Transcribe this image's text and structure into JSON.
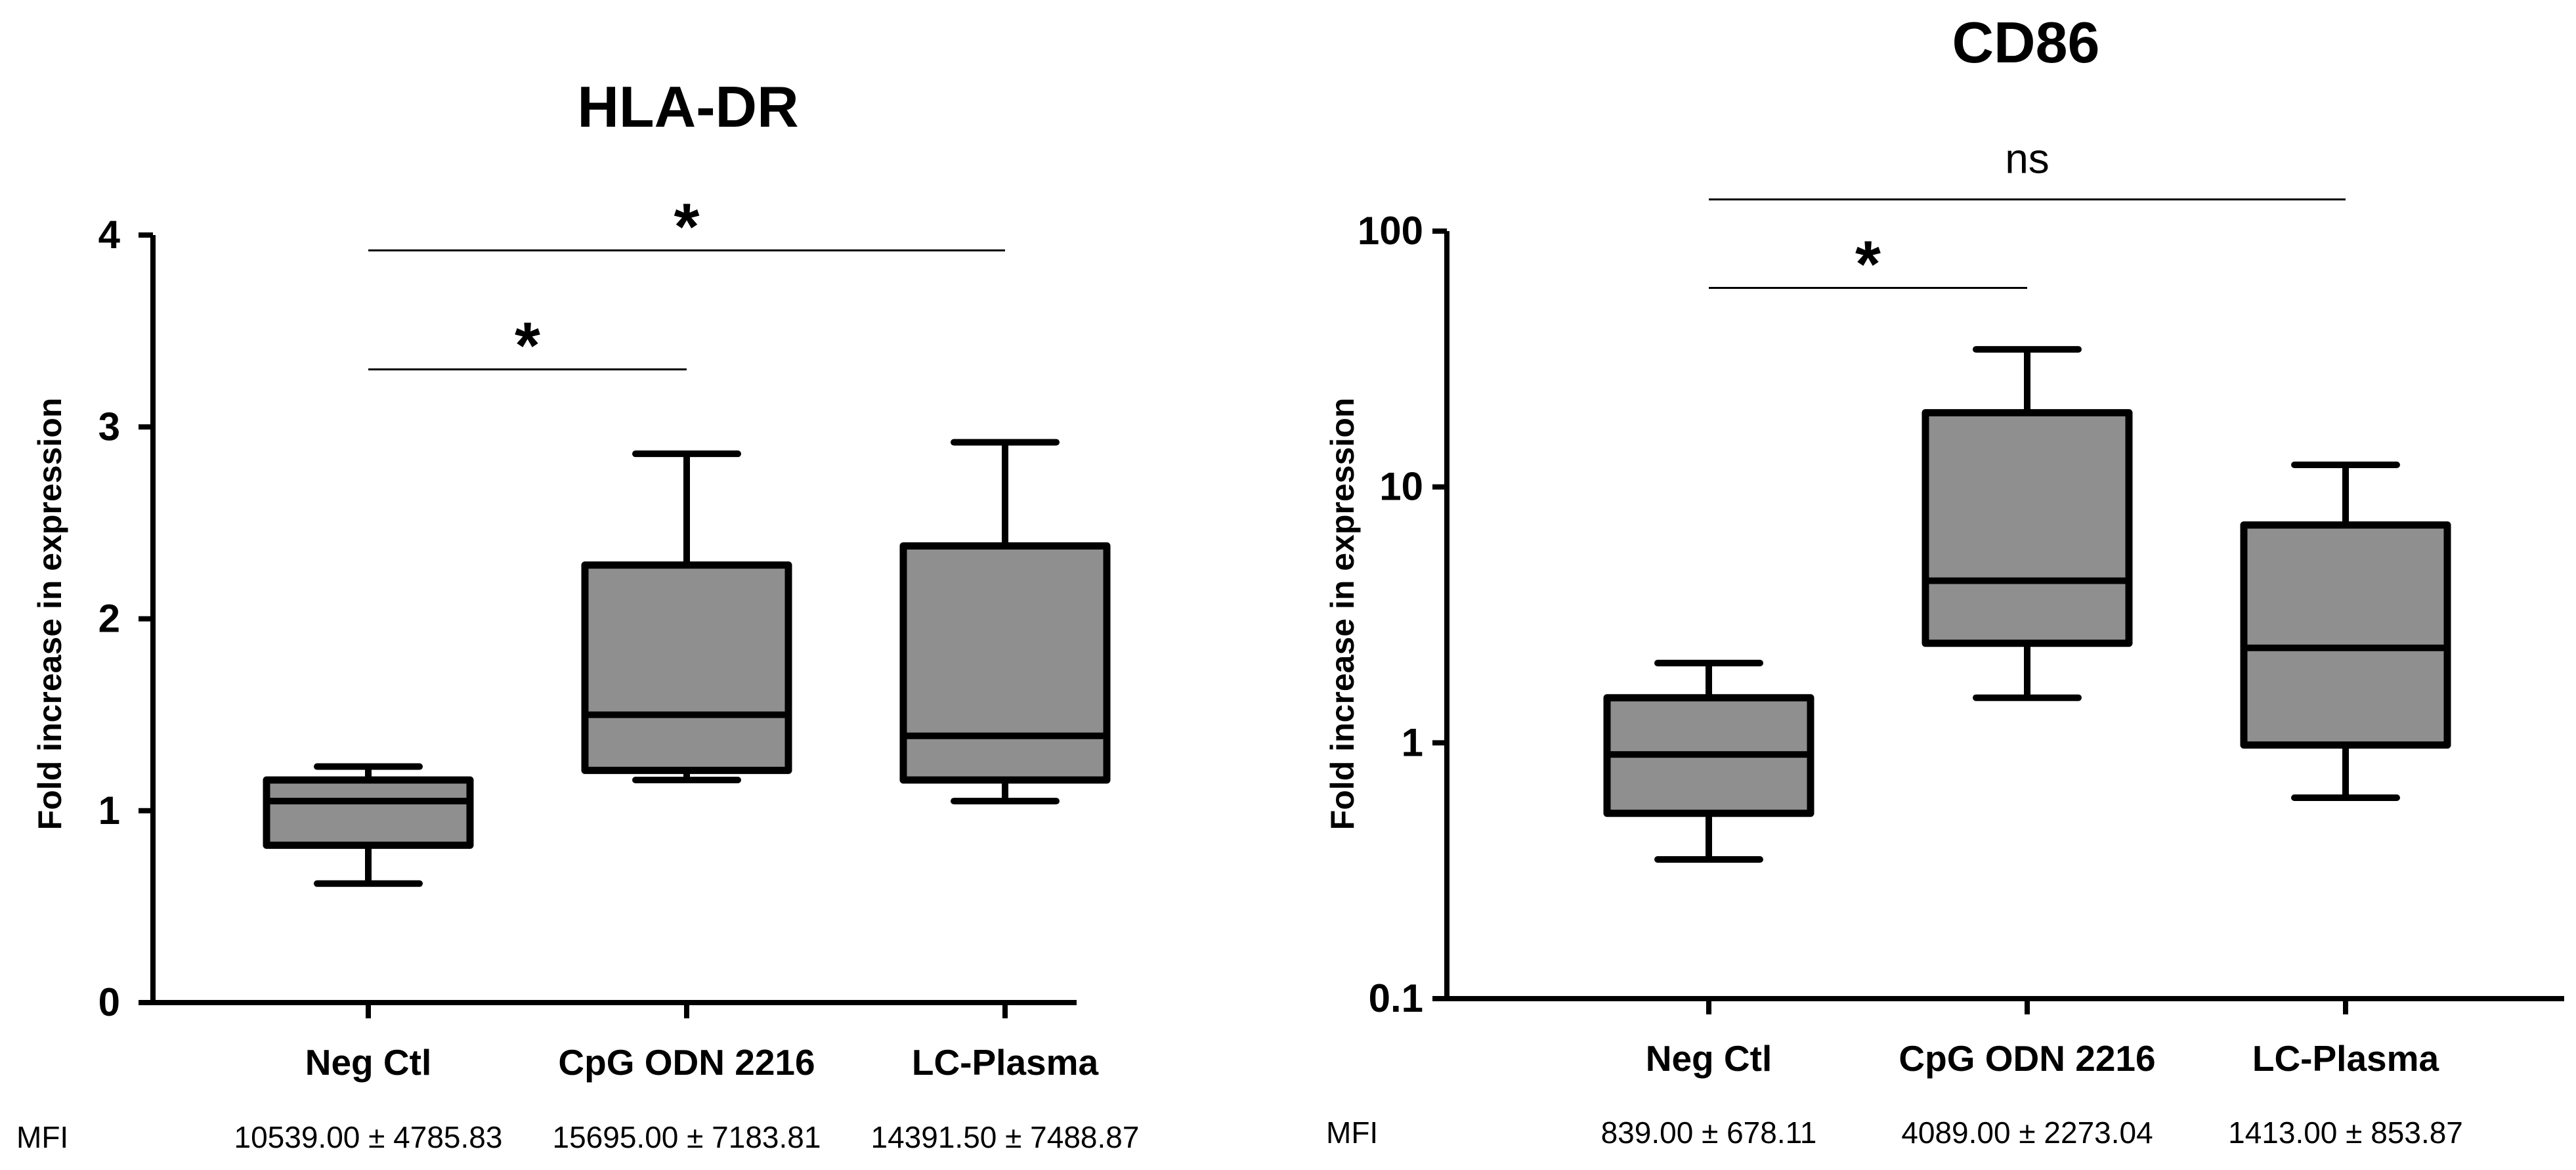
{
  "chart_data": [
    {
      "type": "box",
      "title": "HLA-DR",
      "xlabel": "",
      "ylabel": "Fold increase in expression",
      "yscale": "linear",
      "ylim": [
        0,
        4
      ],
      "yticks": [
        0,
        1,
        2,
        3,
        4
      ],
      "ytick_labels": [
        "0",
        "1",
        "2",
        "3",
        "4"
      ],
      "categories": [
        "Neg Ctl",
        "CpG ODN 2216",
        "LC-Plasma"
      ],
      "boxes": [
        {
          "category": "Neg Ctl",
          "min": 0.62,
          "q1": 0.82,
          "median": 1.05,
          "q3": 1.16,
          "max": 1.23
        },
        {
          "category": "CpG ODN 2216",
          "min": 1.16,
          "q1": 1.21,
          "median": 1.5,
          "q3": 2.28,
          "max": 2.86
        },
        {
          "category": "LC-Plasma",
          "min": 1.05,
          "q1": 1.16,
          "median": 1.39,
          "q3": 2.38,
          "max": 2.92
        }
      ],
      "significance": [
        {
          "from": 0,
          "to": 1,
          "label": "*",
          "y": 3.3
        },
        {
          "from": 0,
          "to": 2,
          "label": "*",
          "y": 3.92
        }
      ],
      "mfi_label": "MFI",
      "mfi_values": [
        "10539.00 ± 4785.83",
        "15695.00 ± 7183.81",
        "14391.50 ± 7488.87"
      ]
    },
    {
      "type": "box",
      "title": "CD86",
      "xlabel": "",
      "ylabel": "Fold increase in expression",
      "yscale": "log",
      "ylim": [
        0.1,
        100
      ],
      "yticks": [
        0.1,
        1,
        10,
        100
      ],
      "ytick_labels": [
        "0.1",
        "1",
        "10",
        "100"
      ],
      "categories": [
        "Neg Ctl",
        "CpG ODN 2216",
        "LC-Plasma"
      ],
      "boxes": [
        {
          "category": "Neg Ctl",
          "min": 0.35,
          "q1": 0.53,
          "median": 0.9,
          "q3": 1.5,
          "max": 2.05
        },
        {
          "category": "CpG ODN 2216",
          "min": 1.5,
          "q1": 2.45,
          "median": 4.3,
          "q3": 19.5,
          "max": 34.5
        },
        {
          "category": "LC-Plasma",
          "min": 0.61,
          "q1": 0.98,
          "median": 2.35,
          "q3": 7.1,
          "max": 12.2
        }
      ],
      "significance": [
        {
          "from": 0,
          "to": 1,
          "label": "*",
          "y": 60
        },
        {
          "from": 0,
          "to": 2,
          "label": "ns",
          "y": 133
        }
      ],
      "mfi_label": "MFI",
      "mfi_values": [
        "839.00 ± 678.11",
        "4089.00 ± 2273.04",
        "1413.00 ± 853.87"
      ]
    }
  ]
}
